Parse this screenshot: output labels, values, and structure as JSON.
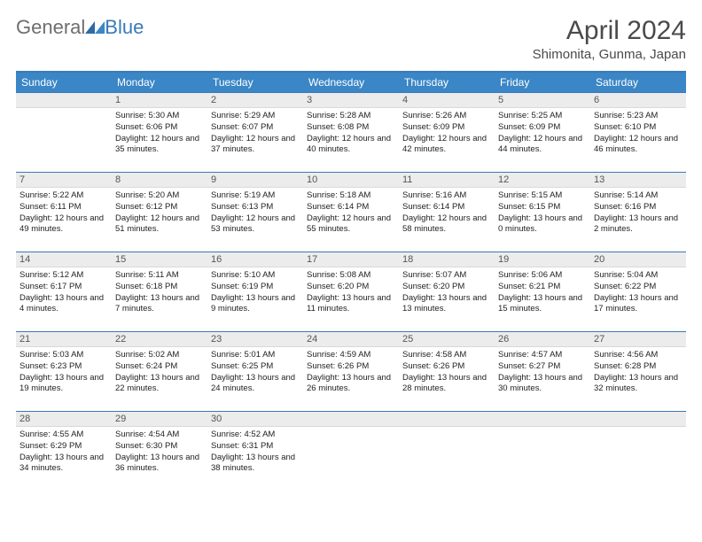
{
  "brand": {
    "text1": "General",
    "text2": "Blue"
  },
  "title": "April 2024",
  "subtitle": "Shimonita, Gunma, Japan",
  "colors": {
    "header_bg": "#3a86c6",
    "header_border": "#3a7ab8",
    "row_divider": "#3a7ab8",
    "daynum_bg": "#ececec"
  },
  "weekdays": [
    "Sunday",
    "Monday",
    "Tuesday",
    "Wednesday",
    "Thursday",
    "Friday",
    "Saturday"
  ],
  "weeks": [
    [
      {
        "n": "",
        "empty": true
      },
      {
        "n": "1",
        "sunrise": "5:30 AM",
        "sunset": "6:06 PM",
        "day": "12 hours and 35 minutes."
      },
      {
        "n": "2",
        "sunrise": "5:29 AM",
        "sunset": "6:07 PM",
        "day": "12 hours and 37 minutes."
      },
      {
        "n": "3",
        "sunrise": "5:28 AM",
        "sunset": "6:08 PM",
        "day": "12 hours and 40 minutes."
      },
      {
        "n": "4",
        "sunrise": "5:26 AM",
        "sunset": "6:09 PM",
        "day": "12 hours and 42 minutes."
      },
      {
        "n": "5",
        "sunrise": "5:25 AM",
        "sunset": "6:09 PM",
        "day": "12 hours and 44 minutes."
      },
      {
        "n": "6",
        "sunrise": "5:23 AM",
        "sunset": "6:10 PM",
        "day": "12 hours and 46 minutes."
      }
    ],
    [
      {
        "n": "7",
        "sunrise": "5:22 AM",
        "sunset": "6:11 PM",
        "day": "12 hours and 49 minutes."
      },
      {
        "n": "8",
        "sunrise": "5:20 AM",
        "sunset": "6:12 PM",
        "day": "12 hours and 51 minutes."
      },
      {
        "n": "9",
        "sunrise": "5:19 AM",
        "sunset": "6:13 PM",
        "day": "12 hours and 53 minutes."
      },
      {
        "n": "10",
        "sunrise": "5:18 AM",
        "sunset": "6:14 PM",
        "day": "12 hours and 55 minutes."
      },
      {
        "n": "11",
        "sunrise": "5:16 AM",
        "sunset": "6:14 PM",
        "day": "12 hours and 58 minutes."
      },
      {
        "n": "12",
        "sunrise": "5:15 AM",
        "sunset": "6:15 PM",
        "day": "13 hours and 0 minutes."
      },
      {
        "n": "13",
        "sunrise": "5:14 AM",
        "sunset": "6:16 PM",
        "day": "13 hours and 2 minutes."
      }
    ],
    [
      {
        "n": "14",
        "sunrise": "5:12 AM",
        "sunset": "6:17 PM",
        "day": "13 hours and 4 minutes."
      },
      {
        "n": "15",
        "sunrise": "5:11 AM",
        "sunset": "6:18 PM",
        "day": "13 hours and 7 minutes."
      },
      {
        "n": "16",
        "sunrise": "5:10 AM",
        "sunset": "6:19 PM",
        "day": "13 hours and 9 minutes."
      },
      {
        "n": "17",
        "sunrise": "5:08 AM",
        "sunset": "6:20 PM",
        "day": "13 hours and 11 minutes."
      },
      {
        "n": "18",
        "sunrise": "5:07 AM",
        "sunset": "6:20 PM",
        "day": "13 hours and 13 minutes."
      },
      {
        "n": "19",
        "sunrise": "5:06 AM",
        "sunset": "6:21 PM",
        "day": "13 hours and 15 minutes."
      },
      {
        "n": "20",
        "sunrise": "5:04 AM",
        "sunset": "6:22 PM",
        "day": "13 hours and 17 minutes."
      }
    ],
    [
      {
        "n": "21",
        "sunrise": "5:03 AM",
        "sunset": "6:23 PM",
        "day": "13 hours and 19 minutes."
      },
      {
        "n": "22",
        "sunrise": "5:02 AM",
        "sunset": "6:24 PM",
        "day": "13 hours and 22 minutes."
      },
      {
        "n": "23",
        "sunrise": "5:01 AM",
        "sunset": "6:25 PM",
        "day": "13 hours and 24 minutes."
      },
      {
        "n": "24",
        "sunrise": "4:59 AM",
        "sunset": "6:26 PM",
        "day": "13 hours and 26 minutes."
      },
      {
        "n": "25",
        "sunrise": "4:58 AM",
        "sunset": "6:26 PM",
        "day": "13 hours and 28 minutes."
      },
      {
        "n": "26",
        "sunrise": "4:57 AM",
        "sunset": "6:27 PM",
        "day": "13 hours and 30 minutes."
      },
      {
        "n": "27",
        "sunrise": "4:56 AM",
        "sunset": "6:28 PM",
        "day": "13 hours and 32 minutes."
      }
    ],
    [
      {
        "n": "28",
        "sunrise": "4:55 AM",
        "sunset": "6:29 PM",
        "day": "13 hours and 34 minutes."
      },
      {
        "n": "29",
        "sunrise": "4:54 AM",
        "sunset": "6:30 PM",
        "day": "13 hours and 36 minutes."
      },
      {
        "n": "30",
        "sunrise": "4:52 AM",
        "sunset": "6:31 PM",
        "day": "13 hours and 38 minutes."
      },
      {
        "n": "",
        "empty": true
      },
      {
        "n": "",
        "empty": true
      },
      {
        "n": "",
        "empty": true
      },
      {
        "n": "",
        "empty": true
      }
    ]
  ],
  "labels": {
    "sunrise": "Sunrise: ",
    "sunset": "Sunset: ",
    "daylight": "Daylight: "
  }
}
